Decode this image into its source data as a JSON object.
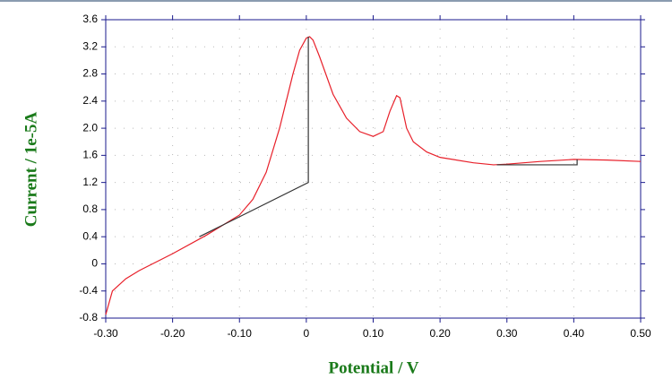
{
  "chart_data": {
    "type": "line",
    "x_label": "Potential / V",
    "y_label": "Current / 1e-5A",
    "xlim": [
      -0.3,
      0.5
    ],
    "ylim": [
      -0.8,
      3.6
    ],
    "xticks": [
      {
        "value": -0.3,
        "label": "-0.30"
      },
      {
        "value": -0.2,
        "label": "-0.20"
      },
      {
        "value": -0.1,
        "label": "-0.10"
      },
      0,
      {
        "value": 0.1,
        "label": "0.10"
      },
      {
        "value": 0.2,
        "label": "0.20"
      },
      {
        "value": 0.3,
        "label": "0.30"
      },
      {
        "value": 0.4,
        "label": "0.40"
      },
      {
        "value": 0.5,
        "label": "0.50"
      }
    ],
    "yticks": [
      -0.8,
      -0.4,
      0,
      0.4,
      0.8,
      1.2,
      1.6,
      {
        "value": 2,
        "label": "2.0"
      },
      2.4,
      2.8,
      3.2,
      3.6
    ],
    "grid": true,
    "series": [
      {
        "color": "#e8202a",
        "x": [
          -0.3,
          -0.29,
          -0.27,
          -0.25,
          -0.2,
          -0.15,
          -0.1,
          -0.08,
          -0.06,
          -0.04,
          -0.02,
          -0.01,
          0,
          0.005,
          0.01,
          0.02,
          0.04,
          0.06,
          0.08,
          0.1,
          0.115,
          0.125,
          0.135,
          0.14,
          0.15,
          0.16,
          0.18,
          0.2,
          0.25,
          0.28,
          0.3,
          0.35,
          0.4,
          0.45,
          0.5
        ],
        "values": [
          -0.75,
          -0.4,
          -0.22,
          -0.1,
          0.15,
          0.42,
          0.72,
          0.95,
          1.35,
          2.0,
          2.8,
          3.15,
          3.33,
          3.35,
          3.3,
          3.05,
          2.5,
          2.15,
          1.95,
          1.88,
          1.95,
          2.25,
          2.48,
          2.45,
          2.0,
          1.8,
          1.65,
          1.57,
          1.49,
          1.46,
          1.47,
          1.51,
          1.54,
          1.53,
          1.51
        ]
      },
      {
        "color": "#333333",
        "x": [
          -0.16,
          0.003,
          0.003
        ],
        "values": [
          0.4,
          1.2,
          3.35
        ]
      },
      {
        "color": "#333333",
        "x": [
          0.285,
          0.405,
          0.405
        ],
        "values": [
          1.46,
          1.46,
          1.54
        ]
      }
    ]
  }
}
